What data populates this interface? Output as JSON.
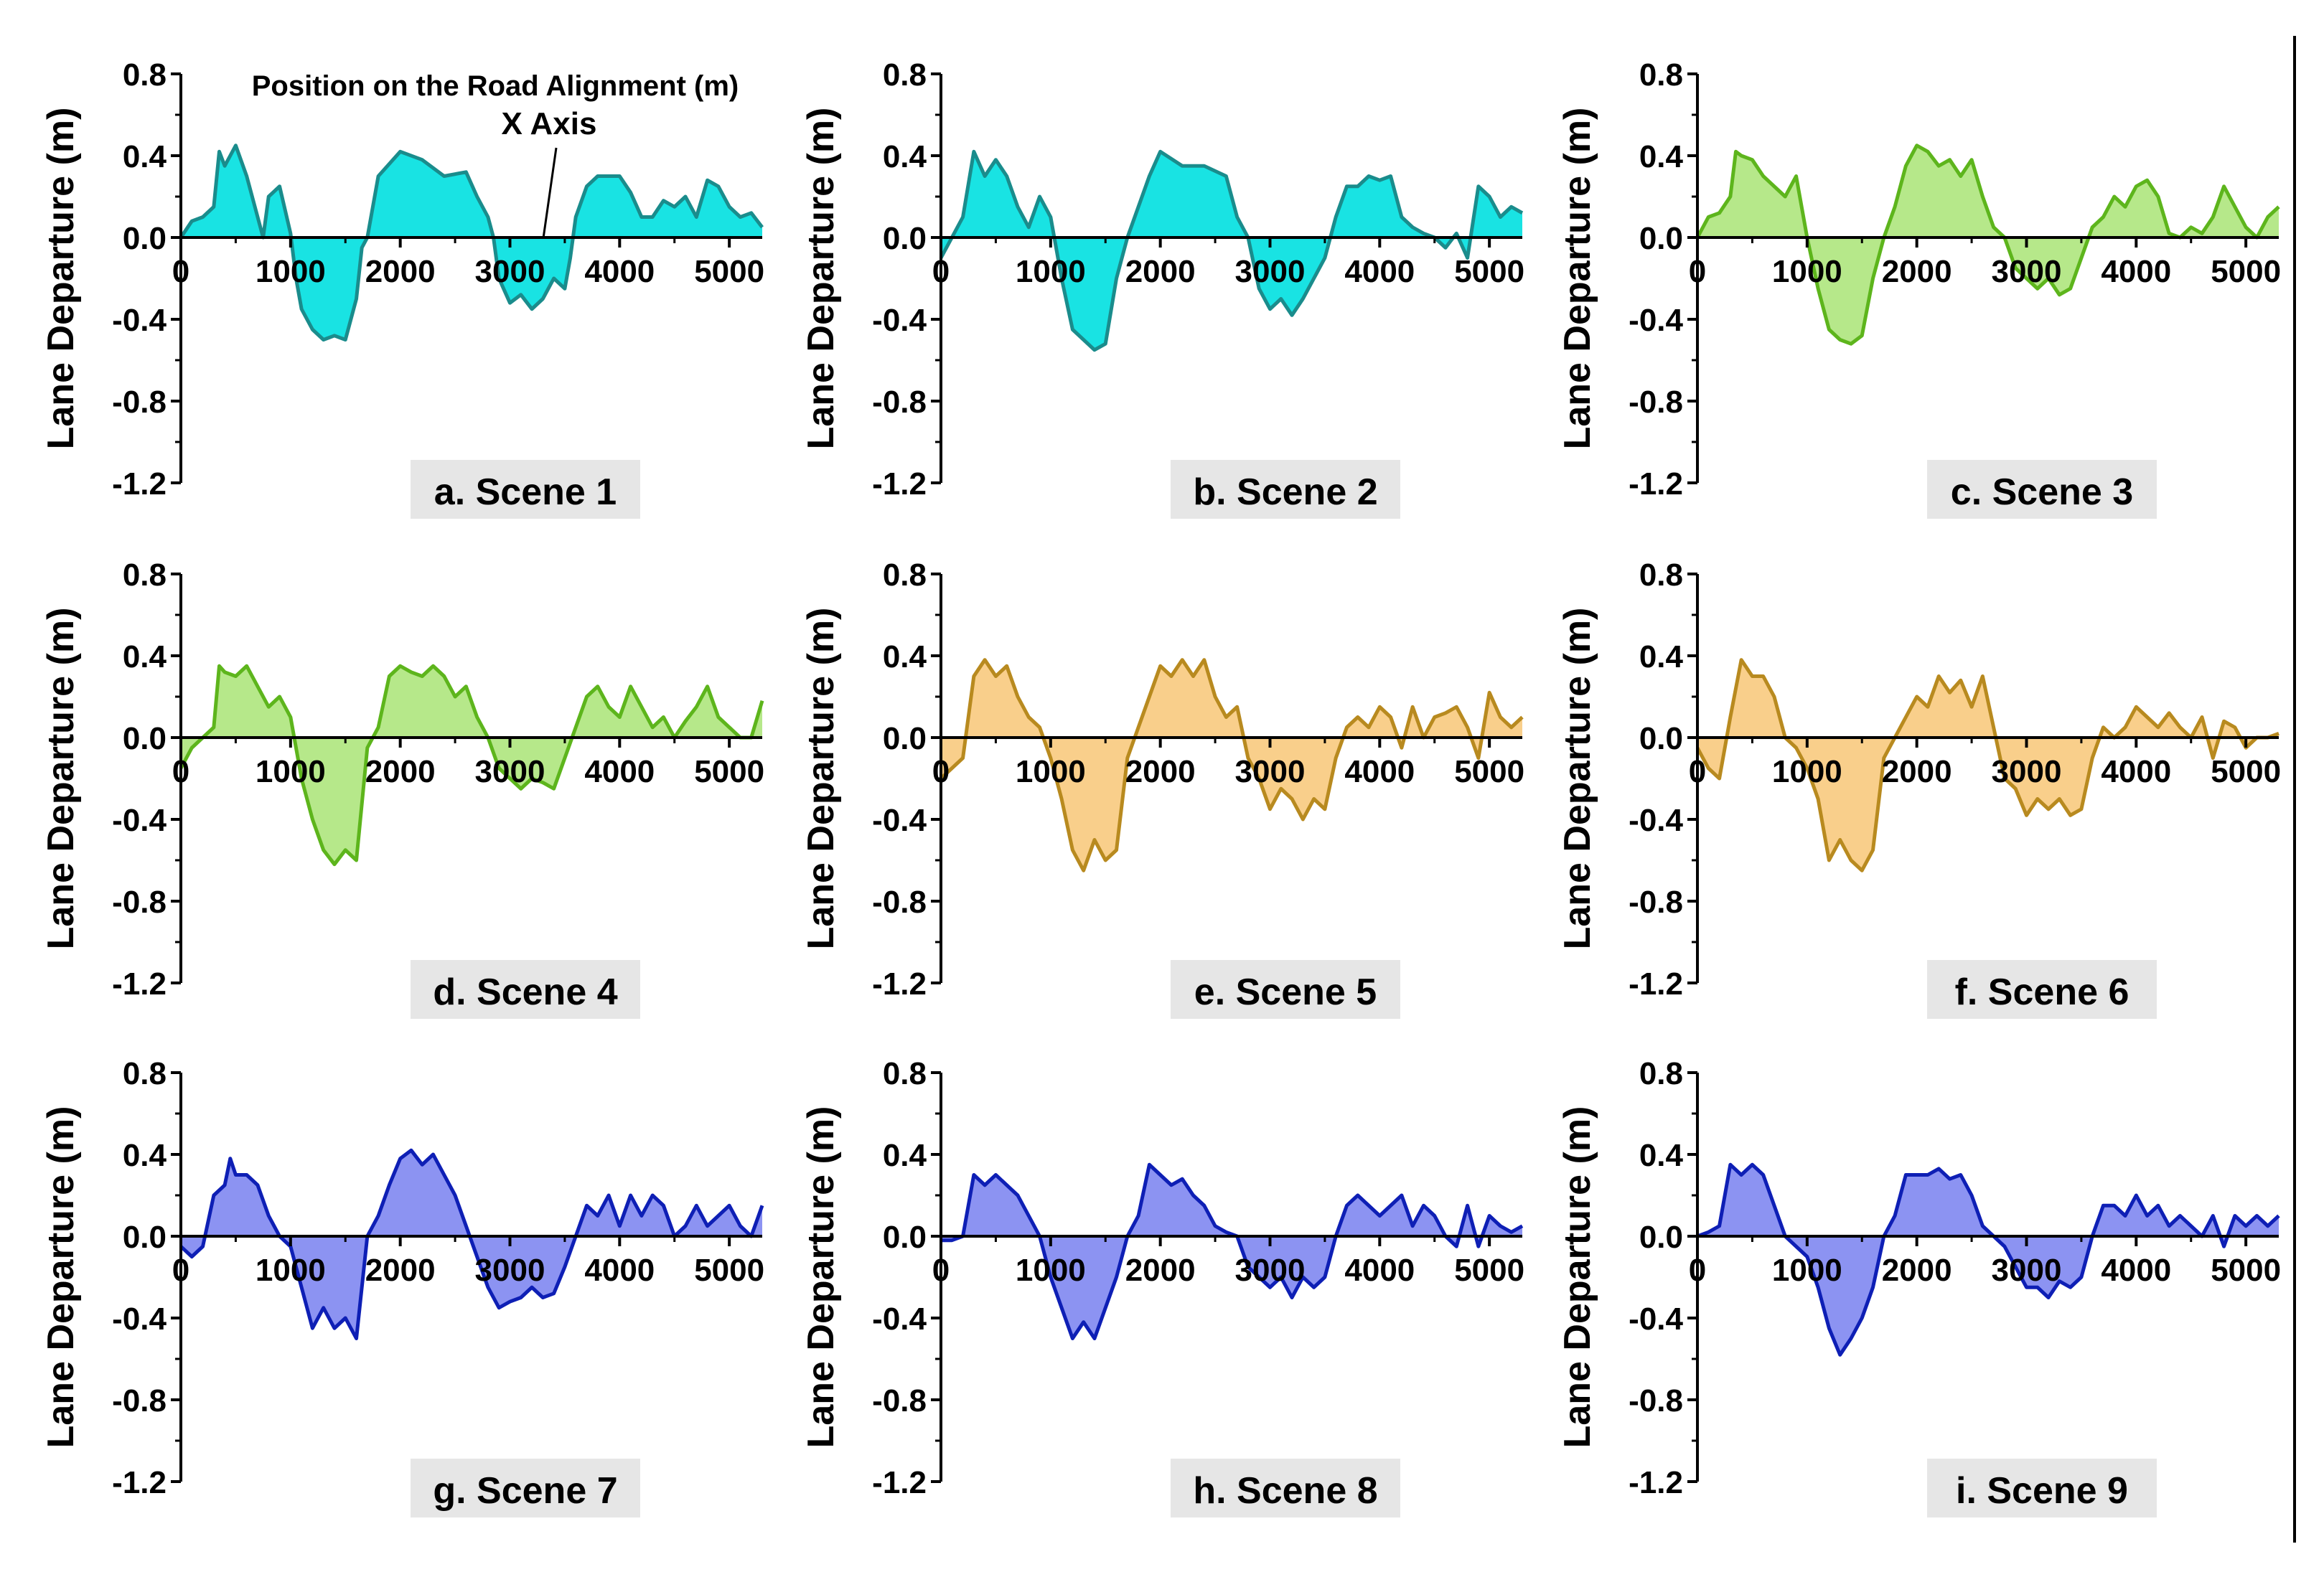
{
  "figure": {
    "annotation": {
      "title": "Position on the Road Alignment (m)",
      "subtitle": "X Axis"
    }
  },
  "colors": {
    "cyan_fill": "#19E3E3",
    "cyan_line": "#1A8C8C",
    "green_fill": "#B6E88A",
    "green_line": "#5DB51C",
    "orange_fill": "#F9CF8B",
    "orange_line": "#B88A1F",
    "blue_fill": "#8C93F2",
    "blue_line": "#0E1FB5",
    "label_bg": "#E6E6E6"
  },
  "chart_data": [
    {
      "type": "area",
      "title": "a. Scene 1",
      "theme": "cyan",
      "xlabel": "",
      "ylabel": "Lane Departure (m)",
      "xlim": [
        0,
        5300
      ],
      "ylim": [
        -1.2,
        0.8
      ],
      "xticks": [
        0,
        1000,
        2000,
        3000,
        4000,
        5000
      ],
      "yticks": [
        -1.2,
        -0.8,
        -0.4,
        0.0,
        0.4,
        0.8
      ],
      "ytick_labels": [
        "-1.2",
        "-0.8",
        "-0.4",
        "0.0",
        "0.4",
        "0.8"
      ],
      "x": [
        0,
        100,
        200,
        300,
        350,
        400,
        500,
        600,
        700,
        750,
        800,
        900,
        1000,
        1050,
        1100,
        1200,
        1300,
        1400,
        1500,
        1600,
        1650,
        1700,
        1800,
        2000,
        2200,
        2400,
        2600,
        2700,
        2800,
        2850,
        2900,
        3000,
        3100,
        3200,
        3300,
        3400,
        3500,
        3550,
        3600,
        3700,
        3800,
        4000,
        4100,
        4200,
        4300,
        4400,
        4500,
        4600,
        4700,
        4800,
        4900,
        5000,
        5100,
        5200,
        5300
      ],
      "y": [
        0.0,
        0.08,
        0.1,
        0.15,
        0.42,
        0.35,
        0.45,
        0.3,
        0.1,
        0.0,
        0.2,
        0.25,
        0.02,
        -0.2,
        -0.35,
        -0.45,
        -0.5,
        -0.48,
        -0.5,
        -0.3,
        -0.05,
        0.0,
        0.3,
        0.42,
        0.38,
        0.3,
        0.32,
        0.2,
        0.1,
        0.0,
        -0.2,
        -0.32,
        -0.28,
        -0.35,
        -0.3,
        -0.2,
        -0.25,
        -0.1,
        0.1,
        0.25,
        0.3,
        0.3,
        0.22,
        0.1,
        0.1,
        0.18,
        0.15,
        0.2,
        0.1,
        0.28,
        0.25,
        0.15,
        0.1,
        0.12,
        0.05
      ]
    },
    {
      "type": "area",
      "title": "b. Scene 2",
      "theme": "cyan",
      "xlabel": "",
      "ylabel": "Lane Departure (m)",
      "xlim": [
        0,
        5300
      ],
      "ylim": [
        -1.2,
        0.8
      ],
      "xticks": [
        0,
        1000,
        2000,
        3000,
        4000,
        5000
      ],
      "yticks": [
        -1.2,
        -0.8,
        -0.4,
        0.0,
        0.4,
        0.8
      ],
      "ytick_labels": [
        "-1.2",
        "-0.8",
        "-0.4",
        "0.0",
        "0.4",
        "0.8"
      ],
      "x": [
        0,
        100,
        200,
        300,
        400,
        500,
        600,
        700,
        800,
        900,
        1000,
        1100,
        1200,
        1300,
        1400,
        1500,
        1600,
        1700,
        1800,
        1900,
        2000,
        2200,
        2400,
        2600,
        2700,
        2800,
        2900,
        3000,
        3100,
        3200,
        3300,
        3400,
        3500,
        3600,
        3700,
        3800,
        3900,
        4000,
        4100,
        4200,
        4300,
        4400,
        4500,
        4600,
        4700,
        4800,
        4900,
        5000,
        5100,
        5200,
        5300
      ],
      "y": [
        -0.1,
        0.0,
        0.1,
        0.42,
        0.3,
        0.38,
        0.3,
        0.15,
        0.05,
        0.2,
        0.1,
        -0.2,
        -0.45,
        -0.5,
        -0.55,
        -0.52,
        -0.2,
        0.0,
        0.15,
        0.3,
        0.42,
        0.35,
        0.35,
        0.3,
        0.1,
        0.0,
        -0.25,
        -0.35,
        -0.3,
        -0.38,
        -0.3,
        -0.2,
        -0.1,
        0.1,
        0.25,
        0.25,
        0.3,
        0.28,
        0.3,
        0.1,
        0.05,
        0.02,
        0.0,
        -0.05,
        0.02,
        -0.1,
        0.25,
        0.2,
        0.1,
        0.15,
        0.12
      ]
    },
    {
      "type": "area",
      "title": "c. Scene 3",
      "theme": "green",
      "xlabel": "",
      "ylabel": "Lane Departure (m)",
      "xlim": [
        0,
        5300
      ],
      "ylim": [
        -1.2,
        0.8
      ],
      "xticks": [
        0,
        1000,
        2000,
        3000,
        4000,
        5000
      ],
      "yticks": [
        -1.2,
        -0.8,
        -0.4,
        0.0,
        0.4,
        0.8
      ],
      "ytick_labels": [
        "-1.2",
        "-0.8",
        "-0.4",
        "0.0",
        "0.4",
        "0.8"
      ],
      "x": [
        0,
        100,
        200,
        300,
        350,
        400,
        500,
        600,
        700,
        800,
        900,
        1000,
        1100,
        1200,
        1300,
        1400,
        1500,
        1600,
        1700,
        1800,
        1900,
        2000,
        2100,
        2200,
        2300,
        2400,
        2500,
        2600,
        2700,
        2800,
        2900,
        3000,
        3100,
        3200,
        3300,
        3400,
        3500,
        3600,
        3700,
        3800,
        3900,
        4000,
        4100,
        4200,
        4300,
        4400,
        4500,
        4600,
        4700,
        4800,
        4900,
        5000,
        5100,
        5200,
        5300
      ],
      "y": [
        0.0,
        0.1,
        0.12,
        0.2,
        0.42,
        0.4,
        0.38,
        0.3,
        0.25,
        0.2,
        0.3,
        0.0,
        -0.25,
        -0.45,
        -0.5,
        -0.52,
        -0.48,
        -0.2,
        0.0,
        0.15,
        0.35,
        0.45,
        0.42,
        0.35,
        0.38,
        0.3,
        0.38,
        0.2,
        0.05,
        0.0,
        -0.15,
        -0.2,
        -0.25,
        -0.2,
        -0.28,
        -0.25,
        -0.1,
        0.05,
        0.1,
        0.2,
        0.15,
        0.25,
        0.28,
        0.2,
        0.02,
        0.0,
        0.05,
        0.02,
        0.1,
        0.25,
        0.15,
        0.05,
        0.0,
        0.1,
        0.15
      ]
    },
    {
      "type": "area",
      "title": "d. Scene 4",
      "theme": "green",
      "xlabel": "",
      "ylabel": "Lane Departure (m)",
      "xlim": [
        0,
        5300
      ],
      "ylim": [
        -1.2,
        0.8
      ],
      "xticks": [
        0,
        1000,
        2000,
        3000,
        4000,
        5000
      ],
      "yticks": [
        -1.2,
        -0.8,
        -0.4,
        0.0,
        0.4,
        0.8
      ],
      "ytick_labels": [
        "-1.2",
        "-0.8",
        "-0.4",
        "0.0",
        "0.4",
        "0.8"
      ],
      "x": [
        0,
        100,
        200,
        300,
        350,
        400,
        500,
        600,
        700,
        800,
        900,
        1000,
        1100,
        1200,
        1300,
        1400,
        1500,
        1600,
        1700,
        1800,
        1900,
        2000,
        2100,
        2200,
        2300,
        2400,
        2500,
        2600,
        2700,
        2800,
        2900,
        3000,
        3100,
        3200,
        3300,
        3400,
        3500,
        3600,
        3700,
        3800,
        3900,
        4000,
        4100,
        4200,
        4300,
        4400,
        4500,
        4600,
        4700,
        4800,
        4900,
        5000,
        5100,
        5200,
        5300
      ],
      "y": [
        -0.15,
        -0.05,
        0.0,
        0.05,
        0.35,
        0.32,
        0.3,
        0.35,
        0.25,
        0.15,
        0.2,
        0.1,
        -0.2,
        -0.4,
        -0.55,
        -0.62,
        -0.55,
        -0.6,
        -0.05,
        0.05,
        0.3,
        0.35,
        0.32,
        0.3,
        0.35,
        0.3,
        0.2,
        0.25,
        0.1,
        0.0,
        -0.15,
        -0.2,
        -0.25,
        -0.2,
        -0.22,
        -0.25,
        -0.1,
        0.05,
        0.2,
        0.25,
        0.15,
        0.1,
        0.25,
        0.15,
        0.05,
        0.1,
        0.0,
        0.08,
        0.15,
        0.25,
        0.1,
        0.05,
        0.0,
        0.0,
        0.18
      ]
    },
    {
      "type": "area",
      "title": "e. Scene 5",
      "theme": "orange",
      "xlabel": "",
      "ylabel": "Lane Departure (m)",
      "xlim": [
        0,
        5300
      ],
      "ylim": [
        -1.2,
        0.8
      ],
      "xticks": [
        0,
        1000,
        2000,
        3000,
        4000,
        5000
      ],
      "yticks": [
        -1.2,
        -0.8,
        -0.4,
        0.0,
        0.4,
        0.8
      ],
      "ytick_labels": [
        "-1.2",
        "-0.8",
        "-0.4",
        "0.0",
        "0.4",
        "0.8"
      ],
      "x": [
        0,
        100,
        200,
        300,
        400,
        500,
        600,
        700,
        800,
        900,
        1000,
        1100,
        1200,
        1300,
        1400,
        1500,
        1600,
        1700,
        1800,
        1900,
        2000,
        2100,
        2200,
        2300,
        2400,
        2500,
        2600,
        2700,
        2800,
        2900,
        3000,
        3100,
        3200,
        3300,
        3400,
        3500,
        3600,
        3700,
        3800,
        3900,
        4000,
        4100,
        4200,
        4300,
        4400,
        4500,
        4600,
        4700,
        4800,
        4900,
        5000,
        5100,
        5200,
        5300
      ],
      "y": [
        -0.2,
        -0.15,
        -0.1,
        0.3,
        0.38,
        0.3,
        0.35,
        0.2,
        0.1,
        0.05,
        -0.1,
        -0.3,
        -0.55,
        -0.65,
        -0.5,
        -0.6,
        -0.55,
        -0.1,
        0.05,
        0.2,
        0.35,
        0.3,
        0.38,
        0.3,
        0.38,
        0.2,
        0.1,
        0.15,
        -0.1,
        -0.2,
        -0.35,
        -0.25,
        -0.3,
        -0.4,
        -0.3,
        -0.35,
        -0.1,
        0.05,
        0.1,
        0.05,
        0.15,
        0.1,
        -0.05,
        0.15,
        0.0,
        0.1,
        0.12,
        0.15,
        0.05,
        -0.1,
        0.22,
        0.1,
        0.05,
        0.1
      ]
    },
    {
      "type": "area",
      "title": "f. Scene 6",
      "theme": "orange",
      "xlabel": "",
      "ylabel": "Lane Departure (m)",
      "xlim": [
        0,
        5300
      ],
      "ylim": [
        -1.2,
        0.8
      ],
      "xticks": [
        0,
        1000,
        2000,
        3000,
        4000,
        5000
      ],
      "yticks": [
        -1.2,
        -0.8,
        -0.4,
        0.0,
        0.4,
        0.8
      ],
      "ytick_labels": [
        "-1.2",
        "-0.8",
        "-0.4",
        "0.0",
        "0.4",
        "0.8"
      ],
      "x": [
        0,
        100,
        200,
        300,
        400,
        500,
        600,
        700,
        800,
        900,
        1000,
        1100,
        1200,
        1300,
        1400,
        1500,
        1600,
        1700,
        1800,
        1900,
        2000,
        2100,
        2200,
        2300,
        2400,
        2500,
        2600,
        2700,
        2800,
        2900,
        3000,
        3100,
        3200,
        3300,
        3400,
        3500,
        3600,
        3700,
        3800,
        3900,
        4000,
        4100,
        4200,
        4300,
        4400,
        4500,
        4600,
        4700,
        4800,
        4900,
        5000,
        5100,
        5200,
        5300
      ],
      "y": [
        -0.05,
        -0.15,
        -0.2,
        0.1,
        0.38,
        0.3,
        0.3,
        0.2,
        0.0,
        -0.05,
        -0.15,
        -0.3,
        -0.6,
        -0.5,
        -0.6,
        -0.65,
        -0.55,
        -0.1,
        0.0,
        0.1,
        0.2,
        0.15,
        0.3,
        0.22,
        0.28,
        0.15,
        0.3,
        0.05,
        -0.2,
        -0.25,
        -0.38,
        -0.3,
        -0.35,
        -0.3,
        -0.38,
        -0.35,
        -0.1,
        0.05,
        0.0,
        0.05,
        0.15,
        0.1,
        0.05,
        0.12,
        0.05,
        0.0,
        0.1,
        -0.1,
        0.08,
        0.05,
        -0.05,
        0.0,
        0.0,
        0.02
      ]
    },
    {
      "type": "area",
      "title": "g. Scene 7",
      "theme": "blue",
      "xlabel": "",
      "ylabel": "Lane Departure (m)",
      "xlim": [
        0,
        5300
      ],
      "ylim": [
        -1.2,
        0.8
      ],
      "xticks": [
        0,
        1000,
        2000,
        3000,
        4000,
        5000
      ],
      "yticks": [
        -1.2,
        -0.8,
        -0.4,
        0.0,
        0.4,
        0.8
      ],
      "ytick_labels": [
        "-1.2",
        "-0.8",
        "-0.4",
        "0.0",
        "0.4",
        "0.8"
      ],
      "x": [
        0,
        100,
        200,
        300,
        400,
        450,
        500,
        600,
        700,
        800,
        900,
        1000,
        1100,
        1200,
        1300,
        1400,
        1500,
        1600,
        1700,
        1800,
        1900,
        2000,
        2100,
        2200,
        2300,
        2400,
        2500,
        2600,
        2700,
        2800,
        2900,
        3000,
        3100,
        3200,
        3300,
        3400,
        3500,
        3600,
        3700,
        3800,
        3900,
        4000,
        4100,
        4200,
        4300,
        4400,
        4500,
        4600,
        4700,
        4800,
        4900,
        5000,
        5100,
        5200,
        5300
      ],
      "y": [
        -0.05,
        -0.1,
        -0.05,
        0.2,
        0.25,
        0.38,
        0.3,
        0.3,
        0.25,
        0.1,
        0.0,
        -0.05,
        -0.25,
        -0.45,
        -0.35,
        -0.45,
        -0.4,
        -0.5,
        0.0,
        0.1,
        0.25,
        0.38,
        0.42,
        0.35,
        0.4,
        0.3,
        0.2,
        0.05,
        -0.1,
        -0.25,
        -0.35,
        -0.32,
        -0.3,
        -0.25,
        -0.3,
        -0.28,
        -0.15,
        0.0,
        0.15,
        0.1,
        0.2,
        0.05,
        0.2,
        0.1,
        0.2,
        0.15,
        0.0,
        0.05,
        0.15,
        0.05,
        0.1,
        0.15,
        0.05,
        0.0,
        0.15
      ]
    },
    {
      "type": "area",
      "title": "h. Scene 8",
      "theme": "blue",
      "xlabel": "",
      "ylabel": "Lane Departure (m)",
      "xlim": [
        0,
        5300
      ],
      "ylim": [
        -1.2,
        0.8
      ],
      "xticks": [
        0,
        1000,
        2000,
        3000,
        4000,
        5000
      ],
      "yticks": [
        -1.2,
        -0.8,
        -0.4,
        0.0,
        0.4,
        0.8
      ],
      "ytick_labels": [
        "-1.2",
        "-0.8",
        "-0.4",
        "0.0",
        "0.4",
        "0.8"
      ],
      "x": [
        0,
        100,
        200,
        300,
        400,
        500,
        600,
        700,
        800,
        900,
        1000,
        1100,
        1200,
        1300,
        1400,
        1500,
        1600,
        1700,
        1800,
        1900,
        2000,
        2100,
        2200,
        2300,
        2400,
        2500,
        2600,
        2700,
        2800,
        2900,
        3000,
        3100,
        3200,
        3300,
        3400,
        3500,
        3600,
        3700,
        3800,
        3900,
        4000,
        4100,
        4200,
        4300,
        4400,
        4500,
        4600,
        4700,
        4800,
        4900,
        5000,
        5100,
        5200,
        5300
      ],
      "y": [
        -0.02,
        -0.02,
        0.0,
        0.3,
        0.25,
        0.3,
        0.25,
        0.2,
        0.1,
        0.0,
        -0.2,
        -0.35,
        -0.5,
        -0.42,
        -0.5,
        -0.35,
        -0.2,
        0.0,
        0.1,
        0.35,
        0.3,
        0.25,
        0.28,
        0.2,
        0.15,
        0.05,
        0.02,
        0.0,
        -0.15,
        -0.2,
        -0.25,
        -0.2,
        -0.3,
        -0.2,
        -0.25,
        -0.2,
        0.0,
        0.15,
        0.2,
        0.15,
        0.1,
        0.15,
        0.2,
        0.05,
        0.15,
        0.1,
        0.0,
        -0.05,
        0.15,
        -0.05,
        0.1,
        0.05,
        0.02,
        0.05
      ]
    },
    {
      "type": "area",
      "title": "i. Scene 9",
      "theme": "blue",
      "xlabel": "",
      "ylabel": "Lane Departure (m)",
      "xlim": [
        0,
        5300
      ],
      "ylim": [
        -1.2,
        0.8
      ],
      "xticks": [
        0,
        1000,
        2000,
        3000,
        4000,
        5000
      ],
      "yticks": [
        -1.2,
        -0.8,
        -0.4,
        0.0,
        0.4,
        0.8
      ],
      "ytick_labels": [
        "-1.2",
        "-0.8",
        "-0.4",
        "0.0",
        "0.4",
        "0.8"
      ],
      "x": [
        0,
        100,
        200,
        300,
        400,
        500,
        600,
        700,
        800,
        900,
        1000,
        1100,
        1200,
        1300,
        1400,
        1500,
        1600,
        1700,
        1800,
        1900,
        2000,
        2100,
        2200,
        2300,
        2400,
        2500,
        2600,
        2700,
        2800,
        2900,
        3000,
        3100,
        3200,
        3300,
        3400,
        3500,
        3600,
        3700,
        3800,
        3900,
        4000,
        4100,
        4200,
        4300,
        4400,
        4500,
        4600,
        4700,
        4800,
        4900,
        5000,
        5100,
        5200,
        5300
      ],
      "y": [
        0.0,
        0.02,
        0.05,
        0.35,
        0.3,
        0.35,
        0.3,
        0.15,
        0.0,
        -0.05,
        -0.1,
        -0.25,
        -0.45,
        -0.58,
        -0.5,
        -0.4,
        -0.25,
        0.0,
        0.1,
        0.3,
        0.3,
        0.3,
        0.33,
        0.28,
        0.3,
        0.2,
        0.05,
        0.0,
        -0.05,
        -0.15,
        -0.25,
        -0.25,
        -0.3,
        -0.22,
        -0.25,
        -0.2,
        0.0,
        0.15,
        0.15,
        0.1,
        0.2,
        0.1,
        0.15,
        0.05,
        0.1,
        0.05,
        0.0,
        0.1,
        -0.05,
        0.1,
        0.05,
        0.1,
        0.05,
        0.1
      ]
    }
  ]
}
